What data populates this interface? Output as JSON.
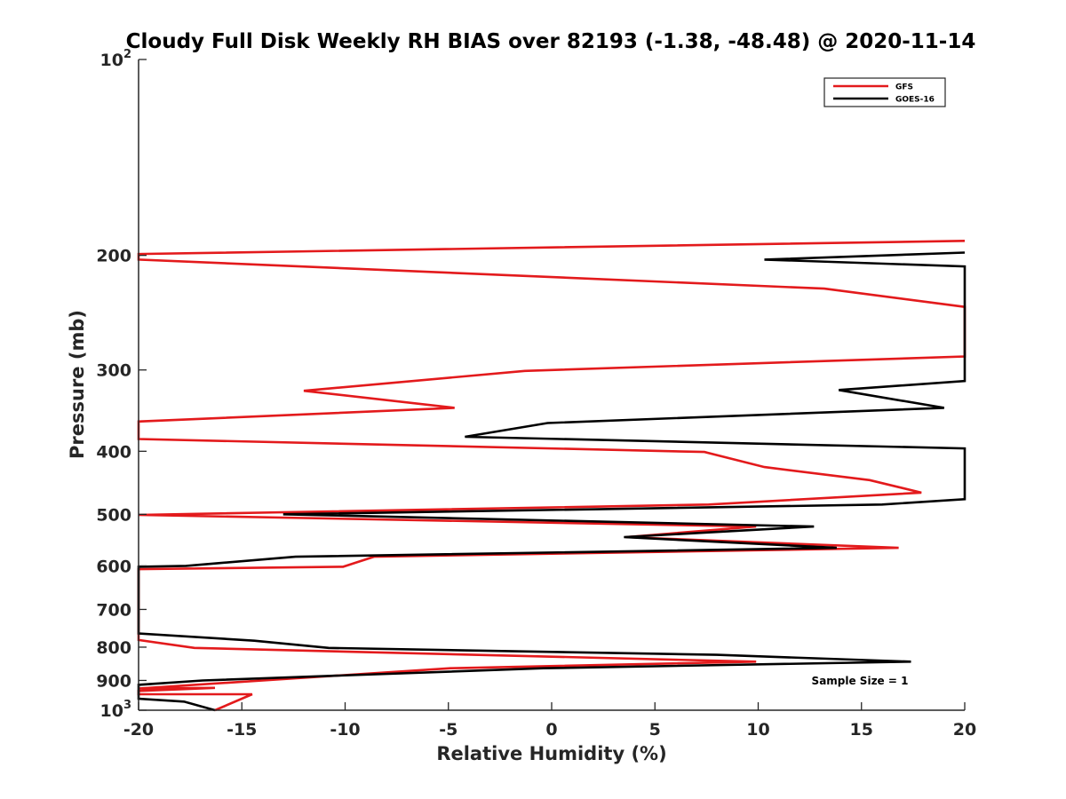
{
  "chart_data": {
    "type": "line",
    "title": "Cloudy Full Disk Weekly RH BIAS over 82193 (-1.38, -48.48) @ 2020-11-14",
    "xlabel": "Relative Humidity (%)",
    "ylabel": "Pressure (mb)",
    "xlim": [
      -20,
      20
    ],
    "ylim": [
      100,
      1000
    ],
    "y_scale": "log",
    "y_reversed": true,
    "x_ticks": [
      "-20",
      "-15",
      "-10",
      "-5",
      "0",
      "5",
      "10",
      "15",
      "20"
    ],
    "y_ticks": [
      {
        "value": 100,
        "base": "10",
        "exp": "2"
      },
      {
        "value": 200,
        "label": "200"
      },
      {
        "value": 300,
        "label": "300"
      },
      {
        "value": 400,
        "label": "400"
      },
      {
        "value": 500,
        "label": "500"
      },
      {
        "value": 600,
        "label": "600"
      },
      {
        "value": 700,
        "label": "700"
      },
      {
        "value": 800,
        "label": "800"
      },
      {
        "value": 900,
        "label": "900"
      },
      {
        "value": 1000,
        "base": "10",
        "exp": "3"
      }
    ],
    "legend_position": "top-right",
    "annotation": "Sample Size = 1",
    "grid": false,
    "series": [
      {
        "name": "GFS",
        "color": "#e31a1c",
        "points": [
          [
            20.0,
            190
          ],
          [
            -20.0,
            199
          ],
          [
            -20.0,
            203
          ],
          [
            13.2,
            225
          ],
          [
            20.0,
            240
          ],
          [
            20.0,
            286
          ],
          [
            -1.3,
            301
          ],
          [
            -12.0,
            323
          ],
          [
            -4.7,
            343
          ],
          [
            -20.0,
            360
          ],
          [
            -20.0,
            383
          ],
          [
            7.4,
            401
          ],
          [
            10.3,
            423
          ],
          [
            15.4,
            443
          ],
          [
            17.9,
            463
          ],
          [
            7.6,
            483
          ],
          [
            -20.0,
            501
          ],
          [
            9.9,
            522
          ],
          [
            3.6,
            542
          ],
          [
            16.8,
            563
          ],
          [
            -8.6,
            581
          ],
          [
            -10.1,
            602
          ],
          [
            -20.0,
            607
          ],
          [
            -20.0,
            780
          ],
          [
            -17.3,
            802
          ],
          [
            9.9,
            842
          ],
          [
            -4.9,
            862
          ],
          [
            -20.0,
            926
          ],
          [
            -16.3,
            924
          ],
          [
            -20.0,
            934
          ],
          [
            -20.0,
            945
          ],
          [
            -14.5,
            945
          ],
          [
            -16.3,
            1000
          ]
        ]
      },
      {
        "name": "GOES-16",
        "color": "#000000",
        "points": [
          [
            20.0,
            198
          ],
          [
            10.3,
            203
          ],
          [
            20.0,
            208
          ],
          [
            20.0,
            312
          ],
          [
            13.9,
            322
          ],
          [
            19.0,
            343
          ],
          [
            -0.2,
            362
          ],
          [
            -4.2,
            380
          ],
          [
            20.0,
            396
          ],
          [
            20.0,
            474
          ],
          [
            16.0,
            483
          ],
          [
            -13.0,
            500
          ],
          [
            12.7,
            522
          ],
          [
            3.5,
            542
          ],
          [
            13.8,
            563
          ],
          [
            -12.4,
            581
          ],
          [
            -17.7,
            600
          ],
          [
            -20.0,
            602
          ],
          [
            -20.0,
            762
          ],
          [
            -14.4,
            782
          ],
          [
            -10.8,
            802
          ],
          [
            8.0,
            822
          ],
          [
            17.4,
            842
          ],
          [
            -0.4,
            862
          ],
          [
            -16.9,
            900
          ],
          [
            -20.0,
            914
          ],
          [
            -20.0,
            960
          ],
          [
            -17.8,
            970
          ],
          [
            -16.3,
            1000
          ]
        ]
      }
    ]
  }
}
